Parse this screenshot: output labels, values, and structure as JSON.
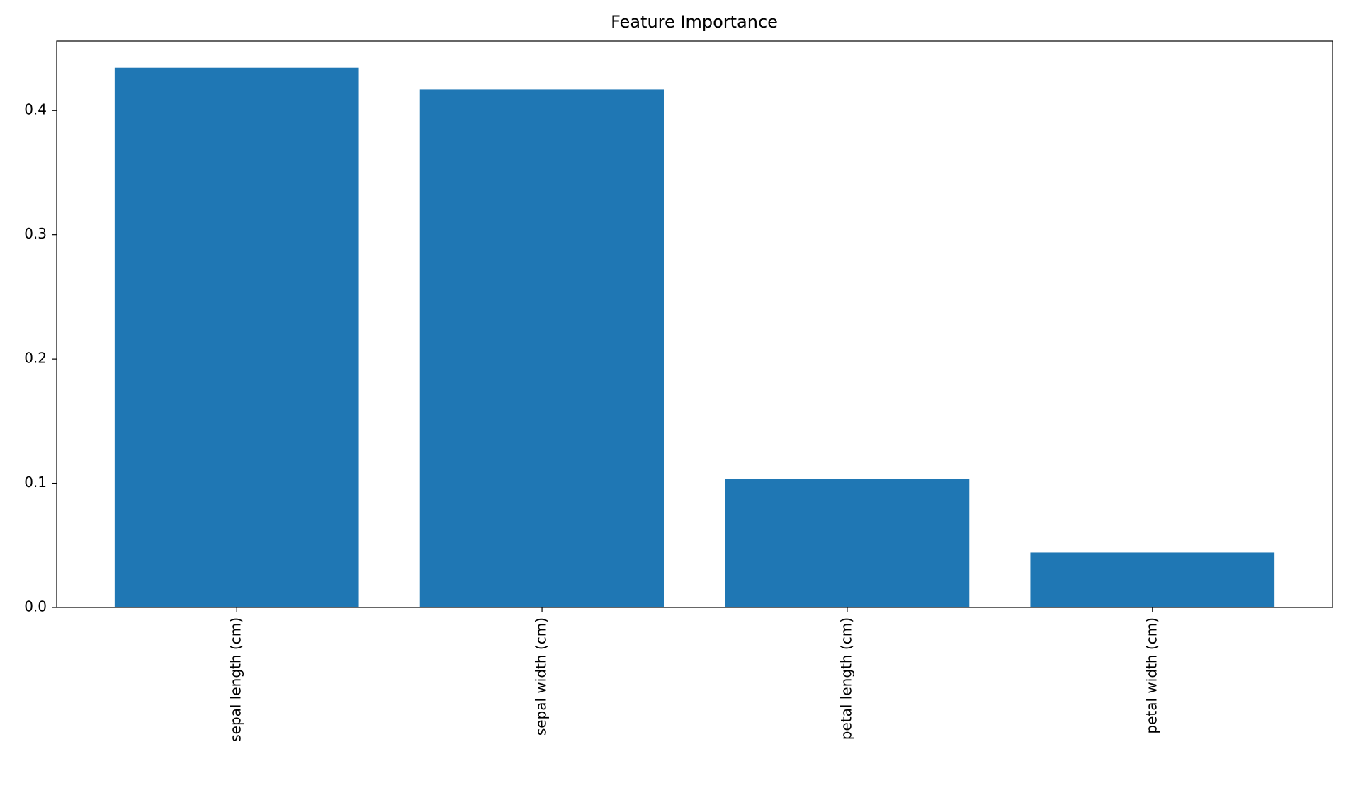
{
  "chart_data": {
    "type": "bar",
    "title": "Feature Importance",
    "categories": [
      "sepal length (cm)",
      "sepal width (cm)",
      "petal length (cm)",
      "petal width (cm)"
    ],
    "values": [
      0.4345,
      0.417,
      0.1036,
      0.0442
    ],
    "color": "#1f77b4",
    "ylim": [
      0,
      0.456
    ],
    "yticks": [
      {
        "value": 0,
        "label": "0.0"
      },
      0.1,
      0.2,
      0.3,
      0.4
    ],
    "grid": false
  }
}
